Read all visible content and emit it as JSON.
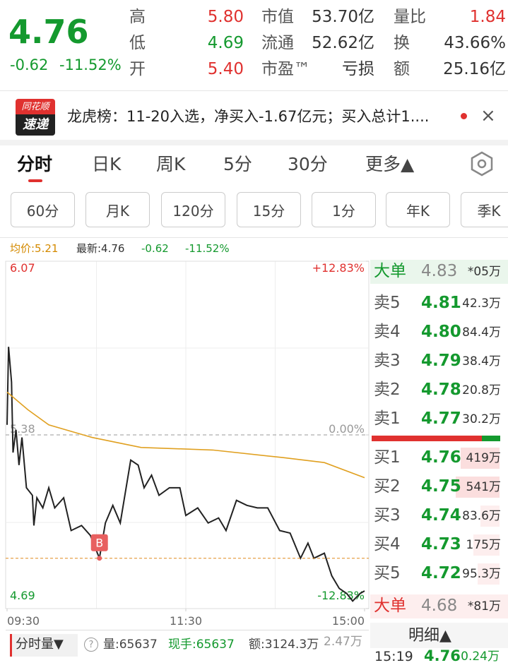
{
  "quote": {
    "price": "4.76",
    "change": "-0.62",
    "change_pct": "-11.52%",
    "stats": [
      [
        {
          "label": "高",
          "value": "5.80"
        },
        {
          "label": "市值",
          "value": "53.70亿"
        },
        {
          "label": "量比",
          "value": "1.84"
        }
      ],
      [
        {
          "label": "低",
          "value": "4.69"
        },
        {
          "label": "流通",
          "value": "52.62亿"
        },
        {
          "label": "换",
          "value": "43.66%"
        }
      ],
      [
        {
          "label": "开",
          "value": "5.40"
        },
        {
          "label": "市盈™",
          "value": "亏损"
        },
        {
          "label": "额",
          "value": "25.16亿"
        }
      ]
    ]
  },
  "news": {
    "brand_top": "同花顺",
    "brand_bottom": "速递",
    "text": "龙虎榜：11-20入选，净买入-1.67亿元；买入总计1....",
    "close": "×"
  },
  "tabs": [
    "分时",
    "日K",
    "周K",
    "5分",
    "30分",
    "更多▲"
  ],
  "periods": [
    "60分",
    "月K",
    "120分",
    "15分",
    "1分",
    "年K",
    "季K"
  ],
  "info": {
    "avg": "均价:5.21",
    "last": "最新:4.76",
    "change": "-0.62",
    "change_pct": "-11.52%"
  },
  "chart_data": {
    "type": "line",
    "xlim": [
      0,
      240
    ],
    "xticks": [
      {
        "value": 0,
        "label": "09:30"
      },
      {
        "value": 120,
        "label": "11:30"
      },
      {
        "value": 240,
        "label": "15:00"
      }
    ],
    "ylim": [
      4.69,
      6.07
    ],
    "yticks": [
      6.07,
      5.38,
      4.69
    ],
    "y2lim": [
      -12.83,
      12.83
    ],
    "y2ticks": [
      {
        "value": 12.83,
        "label": "+12.83%"
      },
      {
        "value": 0,
        "label": "0.00%"
      },
      {
        "value": -12.83,
        "label": "-12.83%"
      }
    ],
    "series": [
      {
        "color": "#222222",
        "x": [
          0,
          1,
          3,
          4,
          6,
          8,
          10,
          13,
          17,
          18,
          20,
          24,
          28,
          32,
          38,
          43,
          50,
          56,
          62,
          66,
          71,
          76,
          83,
          88,
          92,
          97,
          102,
          109,
          116,
          120,
          128,
          135,
          142,
          147,
          154,
          161,
          168,
          175,
          183,
          190,
          197,
          202,
          206,
          213,
          218,
          223,
          228,
          232,
          237,
          240
        ],
        "values": [
          5.42,
          5.73,
          5.59,
          5.31,
          5.4,
          5.26,
          5.37,
          5.17,
          5.14,
          5.02,
          5.13,
          5.09,
          5.17,
          5.09,
          5.13,
          5.0,
          5.02,
          4.98,
          4.89,
          5.03,
          5.1,
          5.03,
          5.28,
          5.26,
          5.17,
          5.22,
          5.14,
          5.17,
          5.17,
          5.06,
          5.09,
          5.03,
          5.05,
          5.0,
          5.12,
          5.1,
          5.09,
          5.09,
          5.0,
          4.99,
          4.89,
          4.95,
          4.89,
          4.91,
          4.82,
          4.77,
          4.75,
          4.72,
          4.75,
          4.76
        ]
      },
      {
        "color": "#e0a020",
        "x": [
          0,
          14,
          28,
          57,
          90,
          138,
          185,
          213,
          240
        ],
        "values": [
          5.55,
          5.48,
          5.42,
          5.37,
          5.33,
          5.32,
          5.29,
          5.27,
          5.21
        ]
      }
    ],
    "annotations": [
      {
        "text": "B",
        "x": 62,
        "y": 4.89
      }
    ]
  },
  "order_book": {
    "big_sell": {
      "label": "大单",
      "price": "4.83",
      "volume": "*05万"
    },
    "asks": [
      {
        "label": "卖5",
        "price": "4.81",
        "volume": "42.3万"
      },
      {
        "label": "卖4",
        "price": "4.80",
        "volume": "84.4万"
      },
      {
        "label": "卖3",
        "price": "4.79",
        "volume": "38.4万"
      },
      {
        "label": "卖2",
        "price": "4.78",
        "volume": "20.8万"
      },
      {
        "label": "卖1",
        "price": "4.77",
        "volume": "30.2万"
      }
    ],
    "bids": [
      {
        "label": "买1",
        "price": "4.76",
        "volume": "419万"
      },
      {
        "label": "买2",
        "price": "4.75",
        "volume": "541万"
      },
      {
        "label": "买3",
        "price": "4.74",
        "volume": "83.6万"
      },
      {
        "label": "买4",
        "price": "4.73",
        "volume": "175万"
      },
      {
        "label": "买5",
        "price": "4.72",
        "volume": "95.3万"
      }
    ],
    "big_buy": {
      "label": "大单",
      "price": "4.68",
      "volume": "*81万"
    },
    "detail": {
      "title": "明细▲",
      "time": "15:19",
      "price": "4.76",
      "volume": "0.24万"
    }
  },
  "bottom": {
    "selector": "分时量▼",
    "help": "?",
    "volume": "量:65637",
    "current": "现手:65637",
    "amount": "额:3124.3万",
    "extra": "2.47万"
  }
}
